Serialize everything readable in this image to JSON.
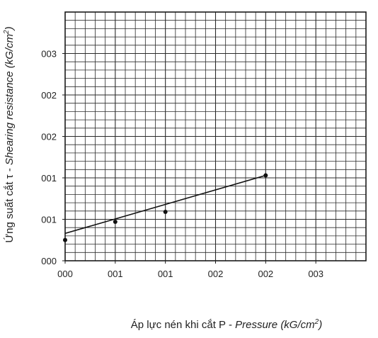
{
  "chart_data": {
    "type": "scatter",
    "title": "",
    "xlabel": {
      "prefix": "Áp lực nén khi cắt P - ",
      "italic": "Pressure (kG/cm",
      "sup": "2",
      "suffix": ")"
    },
    "ylabel": {
      "prefix": "Ứng suất cắt τ - ",
      "italic": "Shearing resistance (kG/cm",
      "sup": "2",
      "suffix": ")"
    },
    "x_tick_labels": [
      "000",
      "001",
      "001",
      "002",
      "002",
      "003"
    ],
    "y_tick_labels": [
      "000",
      "001",
      "001",
      "002",
      "002",
      "003"
    ],
    "xlim": [
      0,
      3
    ],
    "ylim": [
      0,
      3
    ],
    "major_tick_step": 0.5,
    "minor_divisions_per_major": 5,
    "grid": true,
    "series": [
      {
        "x": [
          0.0,
          0.5,
          1.0,
          2.0
        ],
        "y": [
          0.25,
          0.47,
          0.59,
          1.03
        ],
        "marker": "dot",
        "color": "#111111"
      }
    ],
    "trendline": {
      "x": [
        0.0,
        2.0
      ],
      "y": [
        0.33,
        1.03
      ],
      "color": "#111111"
    },
    "colors": {
      "grid": "#2a2a2a",
      "frame": "#1a1a1a",
      "background": "#ffffff"
    }
  }
}
